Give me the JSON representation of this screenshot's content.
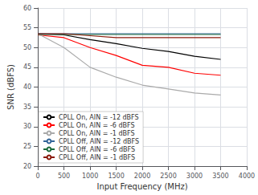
{
  "chart_data": {
    "type": "line",
    "xlabel": "Input Frequency (MHz)",
    "ylabel": "SNR (dBFS)",
    "xlim": [
      0,
      4000
    ],
    "ylim": [
      20,
      60
    ],
    "xticks": [
      0,
      500,
      1000,
      1500,
      2000,
      2500,
      3000,
      3500,
      4000
    ],
    "yticks": [
      20,
      25,
      30,
      35,
      40,
      45,
      50,
      55,
      60
    ],
    "grid": true,
    "legend": "lower left",
    "series": [
      {
        "name": "CPLL On, AIN = -12 dBFS",
        "color": "#000000",
        "x": [
          0,
          500,
          1000,
          1500,
          2000,
          2500,
          3000,
          3500
        ],
        "values": [
          53.5,
          53.2,
          52.0,
          51.0,
          49.8,
          49.0,
          47.8,
          47.0
        ]
      },
      {
        "name": "CPLL On, AIN = -6 dBFS",
        "color": "#ff0000",
        "x": [
          0,
          500,
          1000,
          1500,
          2000,
          2500,
          3000,
          3500
        ],
        "values": [
          53.2,
          52.5,
          50.0,
          48.0,
          45.5,
          45.0,
          43.5,
          43.0
        ]
      },
      {
        "name": "CPLL On, AIN = -1 dBFS",
        "color": "#aaaaaa",
        "x": [
          0,
          500,
          1000,
          1500,
          2000,
          2500,
          3000,
          3500
        ],
        "values": [
          53.5,
          50.0,
          45.0,
          42.5,
          40.5,
          39.5,
          38.5,
          38.0
        ]
      },
      {
        "name": "CPLL Off, AIN = -12 dBFS",
        "color": "#336699",
        "x": [
          0,
          3500
        ],
        "values": [
          53.5,
          53.5
        ]
      },
      {
        "name": "CPLL Off, AIN = -6 dBFS",
        "color": "#1a6b3c",
        "x": [
          0,
          3500
        ],
        "values": [
          53.3,
          53.3
        ]
      },
      {
        "name": "CPLL Off, AIN = -1 dBFS",
        "color": "#8b1a0a",
        "x": [
          0,
          500,
          1000,
          1500,
          2000,
          2500,
          3000,
          3500
        ],
        "values": [
          53.5,
          53.5,
          53.0,
          52.5,
          52.5,
          52.5,
          52.5,
          52.5
        ]
      }
    ]
  }
}
